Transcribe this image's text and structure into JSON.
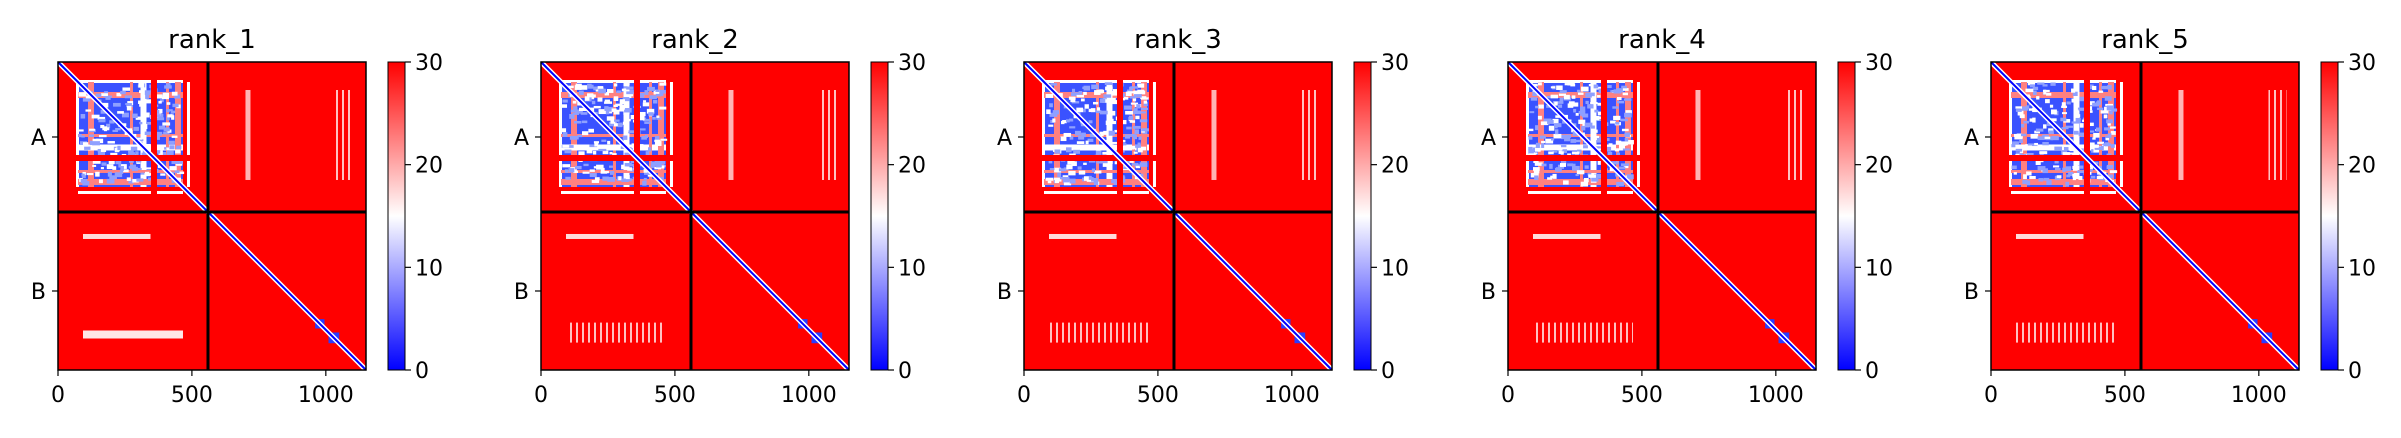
{
  "chart_data": {
    "type": "heatmap",
    "panels": [
      {
        "title": "rank_1"
      },
      {
        "title": "rank_2"
      },
      {
        "title": "rank_3"
      },
      {
        "title": "rank_4"
      },
      {
        "title": "rank_5"
      }
    ],
    "matrix_size": 1150,
    "chain_boundary": 560,
    "chains": [
      "A",
      "B"
    ],
    "xticks": [
      0,
      500,
      1000
    ],
    "colorbar": {
      "min": 0,
      "max": 30,
      "ticks": [
        0,
        10,
        20,
        30
      ],
      "colormap": [
        "#0000ff",
        "#ffffff",
        "#ff0000"
      ]
    },
    "colors": {
      "low": "#0000ff",
      "mid": "#ffffff",
      "high": "#ff0000",
      "divider": "#000000"
    }
  }
}
